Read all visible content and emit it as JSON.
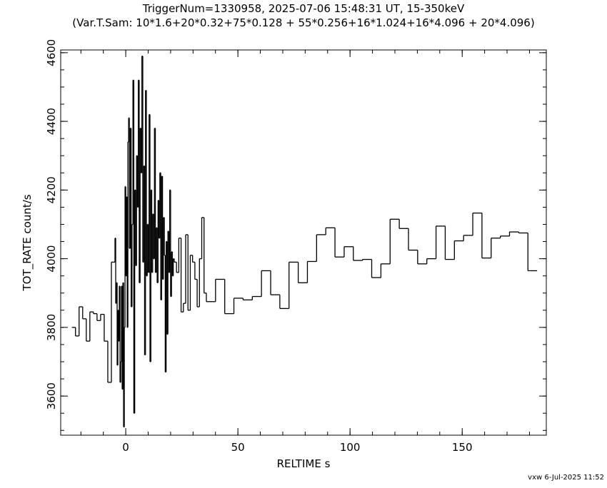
{
  "chart_data": {
    "type": "step",
    "title": "TriggerNum=1330958, 2025-07-06 15:48:31 UT, 15-350keV",
    "subtitle": "(Var.T.Sam: 10*1.6+20*0.32+75*0.128  +  55*0.256+16*1.024+16*4.096  +  20*4.096)",
    "xlabel": "RELTIME  s",
    "ylabel": "TOT_RATE  count/s",
    "footer": "vxw  6-Jul-2025 11:52",
    "xlim": [
      -29,
      187.5
    ],
    "ylim": [
      3486,
      4608
    ],
    "xticks": [
      0,
      50,
      100,
      150
    ],
    "yticks": [
      3600,
      3800,
      4000,
      4200,
      4400,
      4600
    ],
    "color": "#000000",
    "x": [
      -24,
      -22.4,
      -20.8,
      -19.2,
      -17.6,
      -16,
      -14.4,
      -12.8,
      -11.2,
      -9.6,
      -8,
      -6.4,
      -4.8,
      -4.48,
      -4.16,
      -3.84,
      -3.52,
      -3.2,
      -2.88,
      -2.56,
      -2.24,
      -1.92,
      -1.6,
      -1.28,
      -0.96,
      -0.64,
      -0.32,
      0,
      0.32,
      0.64,
      0.96,
      1.28,
      1.6,
      2,
      2.4,
      2.8,
      3.2,
      3.6,
      4,
      4.4,
      4.8,
      5.2,
      5.6,
      6,
      6.4,
      6.8,
      7.2,
      7.6,
      8,
      8.4,
      8.8,
      9.2,
      9.6,
      10,
      10.4,
      10.8,
      11.2,
      11.6,
      12,
      12.4,
      12.8,
      13.2,
      13.6,
      14,
      14.4,
      14.8,
      15.2,
      15.6,
      16,
      16.4,
      16.8,
      17.2,
      17.6,
      18,
      18.4,
      18.8,
      19.2,
      19.6,
      20,
      20.4,
      20.8,
      21.2,
      21.6,
      22.62,
      23.65,
      24.67,
      25.7,
      26.72,
      27.74,
      28.77,
      29.79,
      30.82,
      31.84,
      32.86,
      33.89,
      34.91,
      35.94,
      40.03,
      44.13,
      48.22,
      52.32,
      56.42,
      60.51,
      64.61,
      68.7,
      72.8,
      76.9,
      80.99,
      85.09,
      89.18,
      93.28,
      97.38,
      101.47,
      105.57,
      109.66,
      113.76,
      117.86,
      121.95,
      126.05,
      130.14,
      134.24,
      138.34,
      142.43,
      146.53,
      150.62,
      154.72,
      158.82,
      162.91,
      167.01,
      171.1,
      175.2,
      179.3
    ],
    "values": [
      3800,
      3775,
      3860,
      3825,
      3760,
      3845,
      3840,
      3820,
      3838,
      3760,
      3640,
      3990,
      4060,
      3870,
      3930,
      3690,
      3850,
      3760,
      3920,
      3640,
      3700,
      3920,
      3620,
      3930,
      3510,
      3800,
      4210,
      3950,
      4180,
      3800,
      4340,
      4410,
      4030,
      4380,
      3860,
      4100,
      4520,
      3550,
      4200,
      3980,
      4300,
      4150,
      4520,
      3930,
      4380,
      4250,
      4590,
      3990,
      4270,
      3720,
      4490,
      3950,
      4100,
      3960,
      4420,
      3700,
      4200,
      3960,
      4130,
      4000,
      4380,
      3960,
      4090,
      3930,
      4170,
      4060,
      4250,
      3880,
      4240,
      3940,
      4120,
      4010,
      3670,
      4050,
      3780,
      4080,
      3960,
      4200,
      3890,
      4020,
      3950,
      4000,
      3990,
      3960,
      4060,
      3845,
      3870,
      4070,
      3850,
      4010,
      3990,
      3940,
      3860,
      4000,
      4120,
      3900,
      3875,
      3940,
      3840,
      3885,
      3880,
      3890,
      3965,
      3895,
      3855,
      3990,
      3930,
      3992,
      4070,
      4090,
      4005,
      4035,
      3995,
      3998,
      3945,
      3985,
      4115,
      4088,
      4025,
      3985,
      4000,
      4095,
      3998,
      4052,
      4068,
      4133,
      4002,
      4060,
      4066,
      4078,
      4075,
      3965
    ]
  }
}
